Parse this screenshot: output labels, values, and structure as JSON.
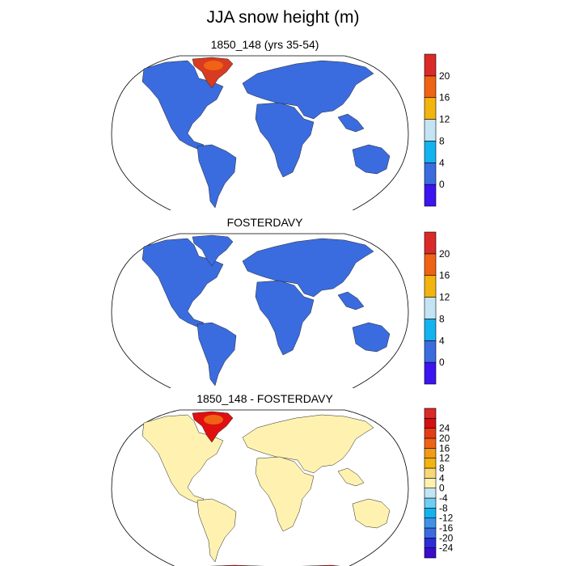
{
  "title": "JJA snow height (m)",
  "panels": [
    {
      "id": "p1",
      "title": "1850_148 (yrs 35-54)",
      "colorbar": {
        "colors": [
          "#3c14f0",
          "#3a6ce0",
          "#13b3f0",
          "#c4e4f4",
          "#f2b40f",
          "#f06314",
          "#d92a28"
        ],
        "labels": [
          "0",
          "4",
          "8",
          "12",
          "16",
          "20"
        ]
      },
      "fills": {
        "land": "#3a6ce0",
        "greenland": "#d83a22",
        "greenland_core": "#f06314",
        "antarctica": "#d92a28"
      }
    },
    {
      "id": "p2",
      "title": "FOSTERDAVY",
      "colorbar": {
        "colors": [
          "#3c14f0",
          "#3a6ce0",
          "#13b3f0",
          "#c4e4f4",
          "#f2b40f",
          "#f06314",
          "#d92a28"
        ],
        "labels": [
          "0",
          "4",
          "8",
          "12",
          "16",
          "20"
        ]
      },
      "fills": {
        "land": "#3a6ce0",
        "greenland": "#3a6ce0",
        "greenland_core": "#3a6ce0",
        "antarctica": "#3a6ce0"
      }
    },
    {
      "id": "p3",
      "title": "1850_148 - FOSTERDAVY",
      "colorbar": {
        "colors": [
          "#3a0ccc",
          "#2c2cd8",
          "#3a6ce0",
          "#3f92e8",
          "#13b3f0",
          "#6ecff2",
          "#c4e4f4",
          "#fff2b0",
          "#f8d878",
          "#f2b40f",
          "#f39a18",
          "#f06314",
          "#e63c14",
          "#d40f10",
          "#d92a28"
        ],
        "labels": [
          "-24",
          "-20",
          "-16",
          "-12",
          "-8",
          "-4",
          "0",
          "4",
          "8",
          "12",
          "16",
          "20",
          "24"
        ]
      },
      "fills": {
        "land": "#fff2b0",
        "greenland": "#e00f10",
        "greenland_core": "#f06314",
        "antarctica": "#d40f10"
      }
    }
  ]
}
